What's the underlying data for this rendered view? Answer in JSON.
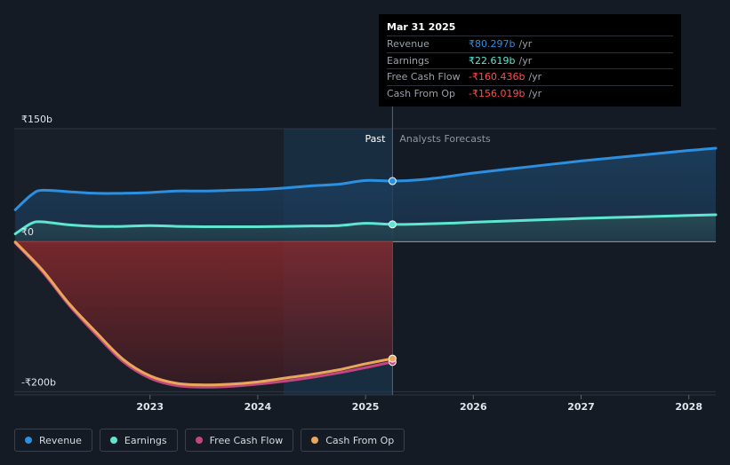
{
  "chart_data": {
    "type": "area",
    "title": "",
    "xlabel": "",
    "ylabel": "",
    "y_tick_labels": [
      "₹150b",
      "₹0",
      "-₹200b"
    ],
    "y_ticks": [
      150,
      0,
      -200
    ],
    "ylim": [
      -210,
      150
    ],
    "x_tick_labels": [
      "2023",
      "2024",
      "2025",
      "2026",
      "2027",
      "2028"
    ],
    "x_ticks": [
      2023,
      2024,
      2025,
      2026,
      2027,
      2028
    ],
    "xlim": [
      2021.74,
      2028.25
    ],
    "past_label": "Past",
    "forecast_label": "Analysts Forecasts",
    "past_end": 2025.25,
    "highlight_start": 2024.24,
    "series": [
      {
        "name": "Revenue",
        "color": "#2d8fe0",
        "x": [
          2021.75,
          2021.9,
          2022.0,
          2022.25,
          2022.5,
          2022.75,
          2023.0,
          2023.25,
          2023.5,
          2023.75,
          2024.0,
          2024.25,
          2024.5,
          2024.75,
          2025.0,
          2025.25,
          2025.5,
          2025.75,
          2026.0,
          2026.5,
          2027.0,
          2027.5,
          2028.0,
          2028.25
        ],
        "values": [
          42,
          62,
          68,
          66,
          64,
          64,
          65,
          67,
          67,
          68,
          69,
          71,
          74,
          76,
          81,
          80.297,
          82,
          86,
          91,
          99,
          107,
          114,
          121,
          124
        ]
      },
      {
        "name": "Earnings",
        "color": "#5ee6d0",
        "x": [
          2021.75,
          2021.9,
          2022.0,
          2022.25,
          2022.5,
          2022.75,
          2023.0,
          2023.25,
          2023.5,
          2023.75,
          2024.0,
          2024.25,
          2024.5,
          2024.75,
          2025.0,
          2025.25,
          2025.5,
          2025.75,
          2026.0,
          2026.5,
          2027.0,
          2027.5,
          2028.0,
          2028.25
        ],
        "values": [
          10,
          24,
          26,
          22,
          20,
          20,
          21,
          20,
          19.5,
          19.5,
          19.5,
          20,
          20.5,
          21,
          24,
          22.619,
          23,
          24,
          25.5,
          28,
          30.5,
          32.5,
          34.5,
          35.5
        ]
      },
      {
        "name": "Free Cash Flow",
        "color": "#c3477e",
        "x": [
          2021.75,
          2022.0,
          2022.25,
          2022.5,
          2022.75,
          2023.0,
          2023.25,
          2023.5,
          2023.75,
          2024.0,
          2024.25,
          2024.5,
          2024.75,
          2025.0,
          2025.25
        ],
        "values": [
          -2,
          -40,
          -85,
          -124,
          -160,
          -182,
          -192,
          -194,
          -193,
          -190,
          -186,
          -181,
          -175,
          -168,
          -160.436
        ]
      },
      {
        "name": "Cash From Op",
        "color": "#e8a75a",
        "x": [
          2021.75,
          2022.0,
          2022.25,
          2022.5,
          2022.75,
          2023.0,
          2023.25,
          2023.5,
          2023.75,
          2024.0,
          2024.25,
          2024.5,
          2024.75,
          2025.0,
          2025.25
        ],
        "values": [
          -1,
          -38,
          -83,
          -121,
          -157,
          -179,
          -189,
          -191,
          -190,
          -187,
          -182,
          -177,
          -171,
          -163,
          -156.019
        ]
      }
    ]
  },
  "tooltip": {
    "date": "Mar 31 2025",
    "rows": [
      {
        "label": "Revenue",
        "value": "₹80.297b",
        "unit": "/yr",
        "color": "#2d8fe0"
      },
      {
        "label": "Earnings",
        "value": "₹22.619b",
        "unit": "/yr",
        "color": "#5ee6d0"
      },
      {
        "label": "Free Cash Flow",
        "value": "-₹160.436b",
        "unit": "/yr",
        "color": "#ff4d4d"
      },
      {
        "label": "Cash From Op",
        "value": "-₹156.019b",
        "unit": "/yr",
        "color": "#ff4d4d"
      }
    ]
  },
  "legend": [
    {
      "label": "Revenue",
      "color": "#2d8fe0"
    },
    {
      "label": "Earnings",
      "color": "#5ee6d0"
    },
    {
      "label": "Free Cash Flow",
      "color": "#c3477e"
    },
    {
      "label": "Cash From Op",
      "color": "#e8a75a"
    }
  ]
}
